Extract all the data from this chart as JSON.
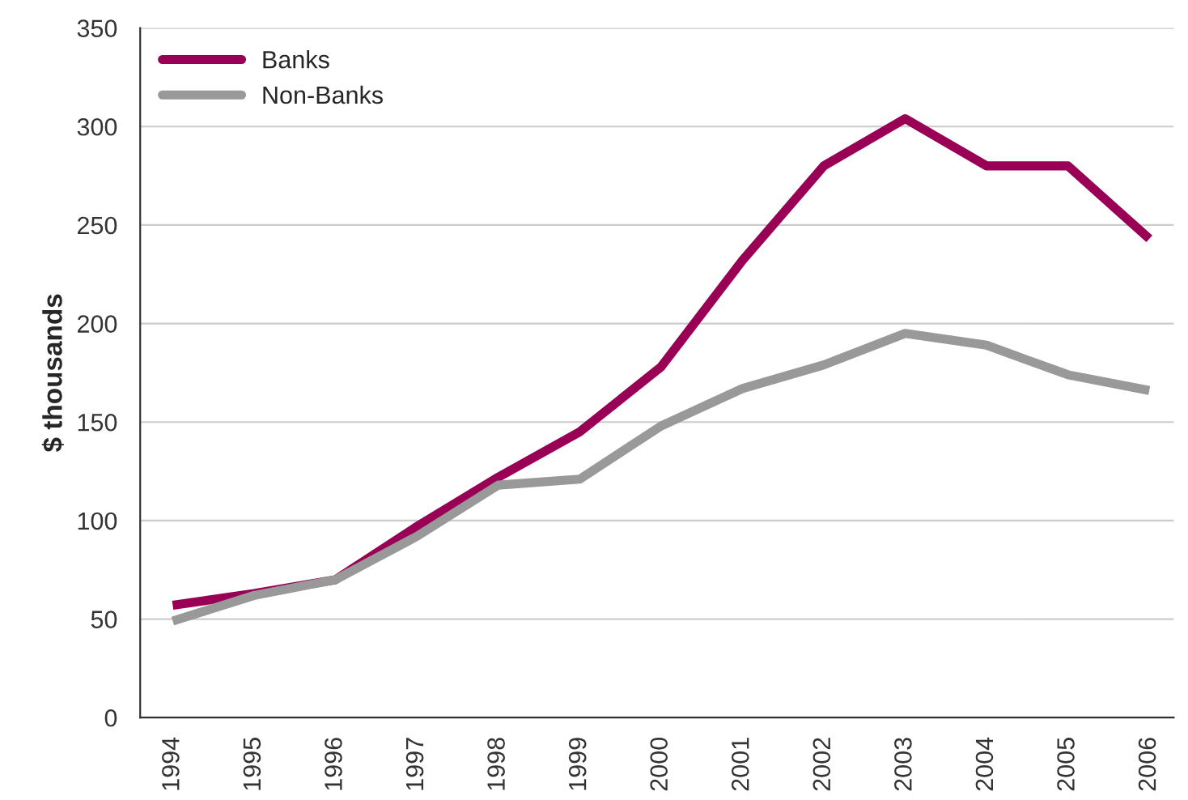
{
  "chart_data": {
    "type": "line",
    "ylabel": "$ thousands",
    "categories": [
      "1994",
      "1995",
      "1996",
      "1997",
      "1998",
      "1999",
      "2000",
      "2001",
      "2002",
      "2003",
      "2004",
      "2005",
      "2006"
    ],
    "series": [
      {
        "name": "Banks",
        "color": "#990055",
        "values": [
          57,
          63,
          70,
          97,
          122,
          145,
          178,
          232,
          280,
          304,
          280,
          280,
          243
        ]
      },
      {
        "name": "Non-Banks",
        "color": "#999999",
        "values": [
          49,
          62,
          70,
          92,
          118,
          121,
          148,
          167,
          179,
          195,
          189,
          174,
          166
        ]
      }
    ],
    "ylim": [
      0,
      350
    ],
    "yticks": [
      0,
      50,
      100,
      150,
      200,
      250,
      300,
      350
    ],
    "grid": "y",
    "legend": "top left",
    "marker": "none",
    "line_style": "solid"
  }
}
